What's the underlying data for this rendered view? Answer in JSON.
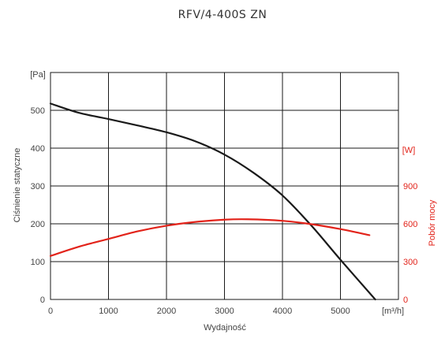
{
  "chart_data": {
    "type": "line",
    "title": "RFV/4-400S ZN",
    "xlabel": "Wydajność",
    "x_unit": "[m³/h]",
    "ylabel": "Ciśnienie statyczne",
    "y_unit": "[Pa]",
    "y2label": "Pobór mocy",
    "y2_unit": "[W]",
    "xlim": [
      0,
      6000
    ],
    "ylim": [
      0,
      600
    ],
    "y2lim": [
      0,
      1800
    ],
    "x_ticks": [
      "0",
      "1000",
      "2000",
      "3000",
      "4000",
      "5000"
    ],
    "y_ticks": [
      "0",
      "100",
      "200",
      "300",
      "400",
      "500"
    ],
    "y2_ticks": [
      "0",
      "300",
      "600",
      "900"
    ],
    "grid": true,
    "series": [
      {
        "axis": "left",
        "color": "#1a1a1a",
        "x": [
          0,
          500,
          1000,
          1500,
          2000,
          2500,
          3000,
          3500,
          4000,
          4500,
          5000,
          5600
        ],
        "y": [
          518,
          493,
          477,
          460,
          442,
          418,
          383,
          335,
          275,
          195,
          105,
          0
        ]
      },
      {
        "axis": "right",
        "color": "#e2231a",
        "x": [
          0,
          500,
          1000,
          1500,
          2000,
          2500,
          3000,
          3400,
          4000,
          4500,
          5000,
          5500
        ],
        "y": [
          345,
          420,
          480,
          540,
          585,
          615,
          633,
          636,
          624,
          597,
          558,
          510
        ]
      }
    ]
  }
}
